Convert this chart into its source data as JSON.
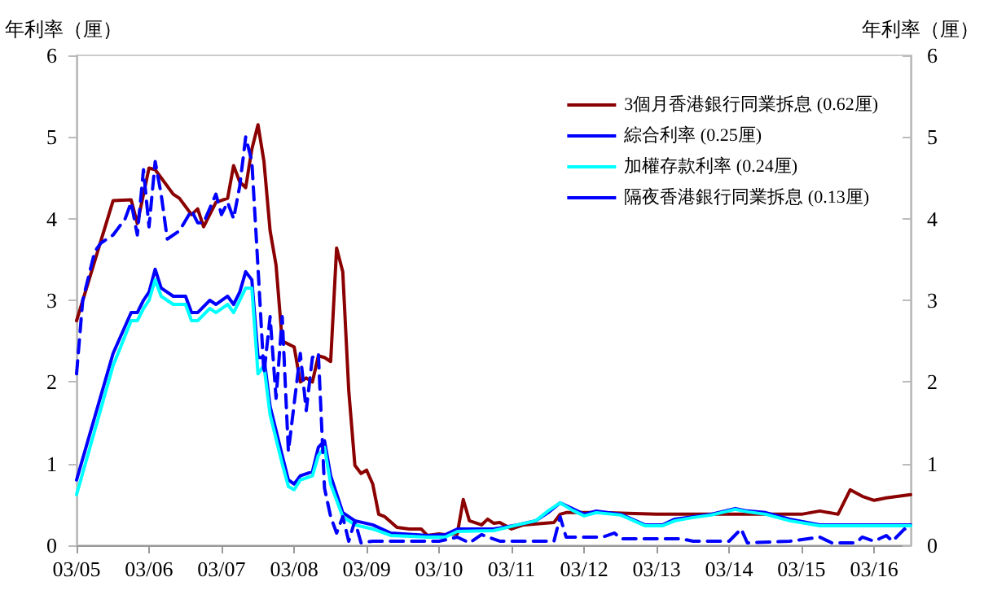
{
  "chart_data": {
    "type": "line",
    "ylabel": "年利率（厘）",
    "y2label": "年利率（厘）",
    "xlim": [
      "2005-03",
      "2016-09"
    ],
    "xticks": [
      {
        "value": "2005-03",
        "label": "03/05"
      },
      {
        "value": "2006-03",
        "label": "03/06"
      },
      {
        "value": "2007-03",
        "label": "03/07"
      },
      {
        "value": "2008-03",
        "label": "03/08"
      },
      {
        "value": "2009-03",
        "label": "03/09"
      },
      {
        "value": "2010-03",
        "label": "03/10"
      },
      {
        "value": "2011-03",
        "label": "03/11"
      },
      {
        "value": "2012-03",
        "label": "03/12"
      },
      {
        "value": "2013-03",
        "label": "03/13"
      },
      {
        "value": "2014-03",
        "label": "03/14"
      },
      {
        "value": "2015-03",
        "label": "03/15"
      },
      {
        "value": "2016-03",
        "label": "03/16"
      }
    ],
    "ylim": [
      0,
      6
    ],
    "yticks": [
      0,
      1,
      2,
      3,
      4,
      5,
      6
    ],
    "y2lim": [
      0,
      6
    ],
    "y2ticks": [
      0,
      1,
      2,
      3,
      4,
      5,
      6
    ],
    "grid": false,
    "legend": "top right",
    "marker": "none",
    "series": [
      {
        "name": "3個月香港銀行同業拆息 (0.62厘)",
        "color": "#8b0000",
        "line_style": "solid",
        "x": [
          "2005-03",
          "2005-09",
          "2005-12",
          "2006-01",
          "2006-03",
          "2006-04",
          "2006-07",
          "2006-08",
          "2006-10",
          "2006-11",
          "2006-12",
          "2007-02",
          "2007-04",
          "2007-05",
          "2007-06",
          "2007-07",
          "2007-08",
          "2007-09",
          "2007-10",
          "2007-11",
          "2007-12",
          "2008-01",
          "2008-03",
          "2008-04",
          "2008-05",
          "2008-06",
          "2008-07",
          "2008-08",
          "2008-09",
          "2008-10",
          "2008-11",
          "2008-12",
          "2009-01",
          "2009-02",
          "2009-03",
          "2009-04",
          "2009-05",
          "2009-06",
          "2009-08",
          "2009-10",
          "2009-12",
          "2010-01",
          "2010-03",
          "2010-04",
          "2010-06",
          "2010-07",
          "2010-08",
          "2010-10",
          "2010-11",
          "2010-12",
          "2011-01",
          "2011-03",
          "2011-05",
          "2011-10",
          "2011-11",
          "2011-12",
          "2012-06",
          "2013-03",
          "2014-03",
          "2015-03",
          "2015-06",
          "2015-09",
          "2015-11",
          "2016-01",
          "2016-03",
          "2016-05",
          "2016-09"
        ],
        "values": [
          2.75,
          4.22,
          4.23,
          3.94,
          4.62,
          4.6,
          4.3,
          4.25,
          4.05,
          4.12,
          3.9,
          4.2,
          4.25,
          4.65,
          4.45,
          4.38,
          4.85,
          5.15,
          4.7,
          3.85,
          3.43,
          2.5,
          2.43,
          2.0,
          2.05,
          2.0,
          2.32,
          2.3,
          2.25,
          3.64,
          3.35,
          1.9,
          0.98,
          0.88,
          0.92,
          0.75,
          0.38,
          0.35,
          0.22,
          0.2,
          0.2,
          0.12,
          0.14,
          0.13,
          0.14,
          0.56,
          0.3,
          0.25,
          0.32,
          0.27,
          0.28,
          0.2,
          0.25,
          0.28,
          0.38,
          0.4,
          0.4,
          0.38,
          0.38,
          0.38,
          0.42,
          0.38,
          0.68,
          0.6,
          0.55,
          0.58,
          0.62
        ]
      },
      {
        "name": "綜合利率 (0.25厘)",
        "color": "#0000ff",
        "line_style": "solid",
        "x": [
          "2005-03",
          "2005-09",
          "2005-12",
          "2006-01",
          "2006-02",
          "2006-03",
          "2006-04",
          "2006-05",
          "2006-07",
          "2006-09",
          "2006-10",
          "2006-11",
          "2007-01",
          "2007-02",
          "2007-04",
          "2007-05",
          "2007-06",
          "2007-07",
          "2007-08",
          "2007-09",
          "2007-10",
          "2007-11",
          "2008-01",
          "2008-02",
          "2008-03",
          "2008-04",
          "2008-06",
          "2008-07",
          "2008-08",
          "2008-09",
          "2008-11",
          "2009-01",
          "2009-04",
          "2009-07",
          "2010-01",
          "2010-04",
          "2010-06",
          "2010-12",
          "2011-04",
          "2011-07",
          "2011-09",
          "2011-11",
          "2012-01",
          "2012-03",
          "2012-05",
          "2012-09",
          "2013-01",
          "2013-04",
          "2013-06",
          "2013-09",
          "2013-12",
          "2014-04",
          "2014-06",
          "2014-09",
          "2015-01",
          "2015-06",
          "2016-01",
          "2016-09"
        ],
        "values": [
          0.8,
          2.35,
          2.85,
          2.85,
          3.0,
          3.1,
          3.38,
          3.15,
          3.05,
          3.05,
          2.85,
          2.85,
          3.0,
          2.95,
          3.05,
          2.95,
          3.1,
          3.35,
          3.25,
          2.3,
          2.3,
          1.7,
          1.1,
          0.8,
          0.75,
          0.85,
          0.9,
          1.2,
          1.28,
          0.85,
          0.4,
          0.3,
          0.25,
          0.15,
          0.12,
          0.13,
          0.2,
          0.2,
          0.25,
          0.3,
          0.4,
          0.52,
          0.45,
          0.38,
          0.42,
          0.38,
          0.25,
          0.25,
          0.32,
          0.35,
          0.38,
          0.45,
          0.42,
          0.4,
          0.32,
          0.25,
          0.25,
          0.25
        ]
      },
      {
        "name": "加權存款利率 (0.24厘)",
        "color": "#00ffff",
        "line_style": "solid",
        "x": [
          "2005-03",
          "2005-09",
          "2005-12",
          "2006-01",
          "2006-02",
          "2006-03",
          "2006-04",
          "2006-05",
          "2006-07",
          "2006-09",
          "2006-10",
          "2006-11",
          "2007-01",
          "2007-02",
          "2007-04",
          "2007-05",
          "2007-06",
          "2007-07",
          "2007-08",
          "2007-09",
          "2007-10",
          "2007-11",
          "2008-01",
          "2008-02",
          "2008-03",
          "2008-04",
          "2008-06",
          "2008-07",
          "2008-08",
          "2008-09",
          "2008-11",
          "2009-01",
          "2009-04",
          "2009-07",
          "2010-01",
          "2010-04",
          "2010-06",
          "2010-12",
          "2011-04",
          "2011-07",
          "2011-09",
          "2011-11",
          "2012-01",
          "2012-03",
          "2012-05",
          "2012-09",
          "2013-01",
          "2013-04",
          "2013-06",
          "2013-09",
          "2013-12",
          "2014-04",
          "2014-06",
          "2014-09",
          "2015-01",
          "2015-06",
          "2016-01",
          "2016-09"
        ],
        "values": [
          0.62,
          2.2,
          2.75,
          2.75,
          2.9,
          3.0,
          3.25,
          3.05,
          2.95,
          2.95,
          2.75,
          2.75,
          2.9,
          2.85,
          2.95,
          2.85,
          3.0,
          3.15,
          3.15,
          2.1,
          2.2,
          1.6,
          1.0,
          0.72,
          0.68,
          0.8,
          0.85,
          1.1,
          1.2,
          0.75,
          0.35,
          0.25,
          0.2,
          0.12,
          0.1,
          0.1,
          0.17,
          0.18,
          0.25,
          0.3,
          0.42,
          0.52,
          0.43,
          0.36,
          0.4,
          0.37,
          0.24,
          0.24,
          0.3,
          0.34,
          0.37,
          0.44,
          0.41,
          0.38,
          0.3,
          0.24,
          0.24,
          0.24
        ]
      },
      {
        "name": "隔夜香港銀行同業拆息 (0.13厘)",
        "color": "#0000ff",
        "line_style": "dashed",
        "x": [
          "2005-03",
          "2005-04",
          "2005-06",
          "2005-07",
          "2005-09",
          "2005-11",
          "2005-12",
          "2006-01",
          "2006-02",
          "2006-03",
          "2006-04",
          "2006-05",
          "2006-06",
          "2006-08",
          "2006-10",
          "2006-11",
          "2006-12",
          "2007-02",
          "2007-03",
          "2007-04",
          "2007-05",
          "2007-06",
          "2007-07",
          "2007-08",
          "2007-09",
          "2007-10",
          "2007-11",
          "2007-12",
          "2008-01",
          "2008-02",
          "2008-04",
          "2008-05",
          "2008-06",
          "2008-07",
          "2008-08",
          "2008-09",
          "2008-10",
          "2008-11",
          "2008-12",
          "2009-01",
          "2009-02",
          "2009-04",
          "2010-03",
          "2010-06",
          "2010-08",
          "2010-10",
          "2011-01",
          "2011-10",
          "2011-11",
          "2011-12",
          "2012-06",
          "2012-08",
          "2012-09",
          "2013-03",
          "2013-07",
          "2013-09",
          "2014-03",
          "2014-05",
          "2014-06",
          "2015-01",
          "2015-06",
          "2015-08",
          "2015-12",
          "2016-01",
          "2016-03",
          "2016-05",
          "2016-06",
          "2016-08",
          "2016-09"
        ],
        "values": [
          2.1,
          3.0,
          3.6,
          3.7,
          3.8,
          4.0,
          4.2,
          3.8,
          4.6,
          3.9,
          4.7,
          4.3,
          3.75,
          3.85,
          4.1,
          3.95,
          3.95,
          4.3,
          4.05,
          4.2,
          4.0,
          4.4,
          5.0,
          4.7,
          3.4,
          2.1,
          2.8,
          1.8,
          2.8,
          1.15,
          2.35,
          1.65,
          2.3,
          2.35,
          0.7,
          0.35,
          0.15,
          0.35,
          0.05,
          0.3,
          0.03,
          0.05,
          0.05,
          0.1,
          0.03,
          0.13,
          0.05,
          0.05,
          0.35,
          0.1,
          0.1,
          0.15,
          0.08,
          0.08,
          0.08,
          0.05,
          0.05,
          0.2,
          0.03,
          0.05,
          0.1,
          0.03,
          0.03,
          0.1,
          0.05,
          0.12,
          0.05,
          0.2,
          0.13
        ]
      }
    ]
  }
}
